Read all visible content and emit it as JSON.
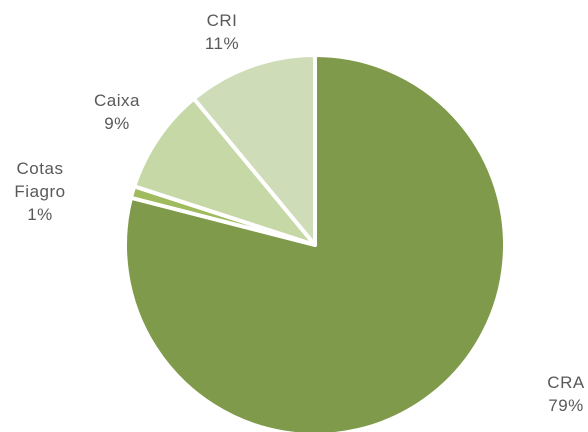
{
  "chart_data": {
    "type": "pie",
    "title": "",
    "slices": [
      {
        "name": "CRA",
        "value": 79,
        "label_lines": [
          "CRA"
        ],
        "pct_label": "79%",
        "color": "#7f9a4a"
      },
      {
        "name": "Cotas Fiagro",
        "value": 1,
        "label_lines": [
          "Cotas",
          "Fiagro"
        ],
        "pct_label": "1%",
        "color": "#9fbb5e"
      },
      {
        "name": "Caixa",
        "value": 9,
        "label_lines": [
          "Caixa"
        ],
        "pct_label": "9%",
        "color": "#c5d8a6"
      },
      {
        "name": "CRI",
        "value": 11,
        "label_lines": [
          "CRI"
        ],
        "pct_label": "11%",
        "color": "#cfdcb8"
      }
    ],
    "start_angle_deg": 0,
    "direction": "clockwise",
    "legend": "none",
    "edge_color": "#ffffff"
  }
}
